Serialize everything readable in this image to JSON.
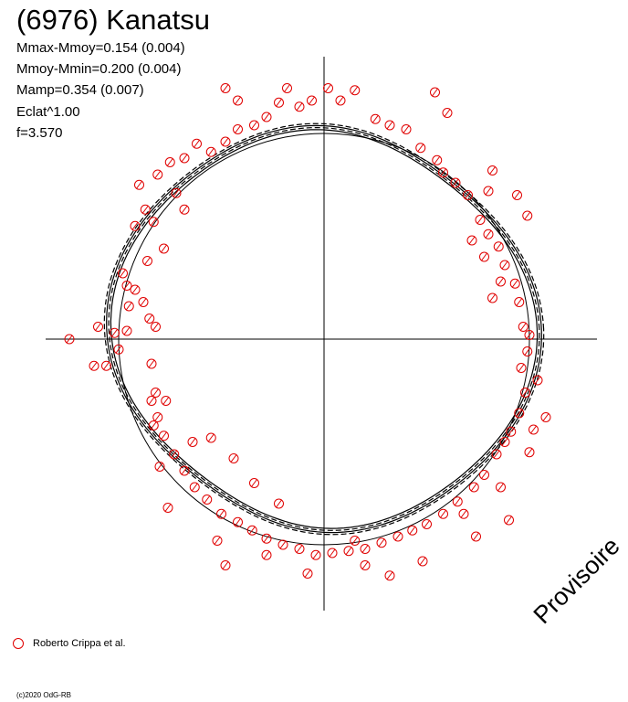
{
  "title": "(6976) Kanatsu",
  "params": [
    "Mmax-Mmoy=0.154 (0.004)",
    "Mmoy-Mmin=0.200 (0.004)",
    "Mamp=0.354 (0.007)",
    "Eclat^1.00",
    "f=3.570"
  ],
  "watermark": "Provisoire",
  "legend": {
    "label": "Roberto Crippa et al.",
    "marker": "red-circle"
  },
  "copyright": "(c)2020 OdG-RB",
  "colors": {
    "points": "#e00000",
    "curves": "#000000",
    "axes": "#000000"
  },
  "chart_data": {
    "type": "scatter",
    "coordinate_system": "polar",
    "description_units": "radius 1.0 = mean magnitude circle; angle = rotational phase",
    "mmax_minus_mmoy": 0.154,
    "mmoy_minus_mmin": 0.2,
    "amplitude": 0.354,
    "frequency": 3.57,
    "reference_circle_radius": 1.0,
    "fit_radius_range": [
      0.96,
      1.09
    ],
    "series": [
      {
        "name": "Roberto Crippa et al.",
        "points": [
          [
            -1.24,
            0.0
          ],
          [
            -1.1,
            0.06
          ],
          [
            -1.12,
            -0.13
          ],
          [
            -1.06,
            -0.13
          ],
          [
            -1.02,
            0.03
          ],
          [
            -1.0,
            -0.05
          ],
          [
            -0.96,
            0.04
          ],
          [
            -0.95,
            0.16
          ],
          [
            -0.96,
            0.26
          ],
          [
            -0.98,
            0.32
          ],
          [
            -0.92,
            0.24
          ],
          [
            -0.88,
            0.18
          ],
          [
            -0.85,
            0.1
          ],
          [
            -0.82,
            0.06
          ],
          [
            -0.84,
            -0.12
          ],
          [
            -0.82,
            -0.26
          ],
          [
            -0.83,
            -0.42
          ],
          [
            -0.77,
            -0.3
          ],
          [
            -0.78,
            0.44
          ],
          [
            -0.83,
            0.57
          ],
          [
            -0.87,
            0.63
          ],
          [
            -0.9,
            0.75
          ],
          [
            -0.81,
            0.8
          ],
          [
            -0.75,
            0.86
          ],
          [
            -0.68,
            0.88
          ],
          [
            -0.62,
            0.95
          ],
          [
            -0.55,
            0.91
          ],
          [
            -0.48,
            0.96
          ],
          [
            -0.42,
            1.02
          ],
          [
            -0.34,
            1.04
          ],
          [
            -0.28,
            1.08
          ],
          [
            -0.22,
            1.15
          ],
          [
            -0.18,
            1.22
          ],
          [
            -0.12,
            1.13
          ],
          [
            -0.06,
            1.16
          ],
          [
            0.02,
            1.22
          ],
          [
            0.08,
            1.16
          ],
          [
            0.15,
            1.21
          ],
          [
            0.25,
            1.07
          ],
          [
            0.32,
            1.04
          ],
          [
            0.4,
            1.02
          ],
          [
            0.47,
            0.93
          ],
          [
            0.55,
            0.87
          ],
          [
            0.58,
            0.81
          ],
          [
            0.64,
            0.76
          ],
          [
            0.7,
            0.7
          ],
          [
            0.76,
            0.58
          ],
          [
            0.8,
            0.51
          ],
          [
            0.85,
            0.45
          ],
          [
            0.88,
            0.36
          ],
          [
            0.93,
            0.27
          ],
          [
            0.95,
            0.18
          ],
          [
            0.97,
            0.06
          ],
          [
            0.99,
            -0.06
          ],
          [
            0.96,
            -0.14
          ],
          [
            0.98,
            -0.26
          ],
          [
            0.95,
            -0.36
          ],
          [
            0.91,
            -0.45
          ],
          [
            0.88,
            -0.5
          ],
          [
            0.84,
            -0.56
          ],
          [
            0.78,
            -0.66
          ],
          [
            0.73,
            -0.72
          ],
          [
            0.65,
            -0.79
          ],
          [
            0.58,
            -0.85
          ],
          [
            0.5,
            -0.9
          ],
          [
            0.43,
            -0.93
          ],
          [
            0.36,
            -0.96
          ],
          [
            0.28,
            -0.99
          ],
          [
            0.2,
            -1.02
          ],
          [
            0.12,
            -1.03
          ],
          [
            0.04,
            -1.04
          ],
          [
            -0.04,
            -1.05
          ],
          [
            -0.12,
            -1.02
          ],
          [
            -0.2,
            -1.0
          ],
          [
            -0.28,
            -0.97
          ],
          [
            -0.35,
            -0.93
          ],
          [
            -0.42,
            -0.89
          ],
          [
            -0.5,
            -0.85
          ],
          [
            -0.57,
            -0.78
          ],
          [
            -0.63,
            -0.72
          ],
          [
            -0.68,
            -0.64
          ],
          [
            -0.73,
            -0.56
          ],
          [
            -0.78,
            -0.47
          ],
          [
            -0.81,
            -0.38
          ],
          [
            -0.84,
            -0.3
          ],
          [
            -0.64,
            -0.5
          ],
          [
            -0.55,
            -0.48
          ],
          [
            -0.44,
            -0.58
          ],
          [
            -0.34,
            -0.7
          ],
          [
            -0.22,
            -0.8
          ],
          [
            -0.52,
            -0.98
          ],
          [
            -0.48,
            -1.1
          ],
          [
            -0.28,
            -1.05
          ],
          [
            -0.08,
            -1.14
          ],
          [
            0.2,
            -1.1
          ],
          [
            0.48,
            -1.08
          ],
          [
            0.68,
            -0.85
          ],
          [
            0.74,
            -0.96
          ],
          [
            0.86,
            -0.72
          ],
          [
            1.0,
            -0.55
          ],
          [
            1.02,
            -0.44
          ],
          [
            1.08,
            -0.38
          ],
          [
            1.04,
            -0.2
          ],
          [
            1.0,
            0.02
          ],
          [
            0.82,
            0.2
          ],
          [
            0.86,
            0.28
          ],
          [
            0.78,
            0.4
          ],
          [
            0.72,
            0.48
          ],
          [
            0.82,
            0.82
          ],
          [
            0.8,
            0.72
          ],
          [
            0.6,
            1.1
          ],
          [
            0.54,
            1.2
          ],
          [
            -0.42,
            1.16
          ],
          [
            -0.48,
            1.22
          ],
          [
            -0.72,
            0.71
          ],
          [
            -0.68,
            0.63
          ],
          [
            -0.86,
            0.38
          ],
          [
            -0.92,
            0.55
          ],
          [
            -0.8,
            -0.62
          ],
          [
            -0.76,
            -0.82
          ],
          [
            0.15,
            -0.98
          ],
          [
            0.32,
            -1.15
          ],
          [
            0.9,
            -0.88
          ],
          [
            0.99,
            0.6
          ],
          [
            0.94,
            0.7
          ]
        ]
      }
    ]
  }
}
